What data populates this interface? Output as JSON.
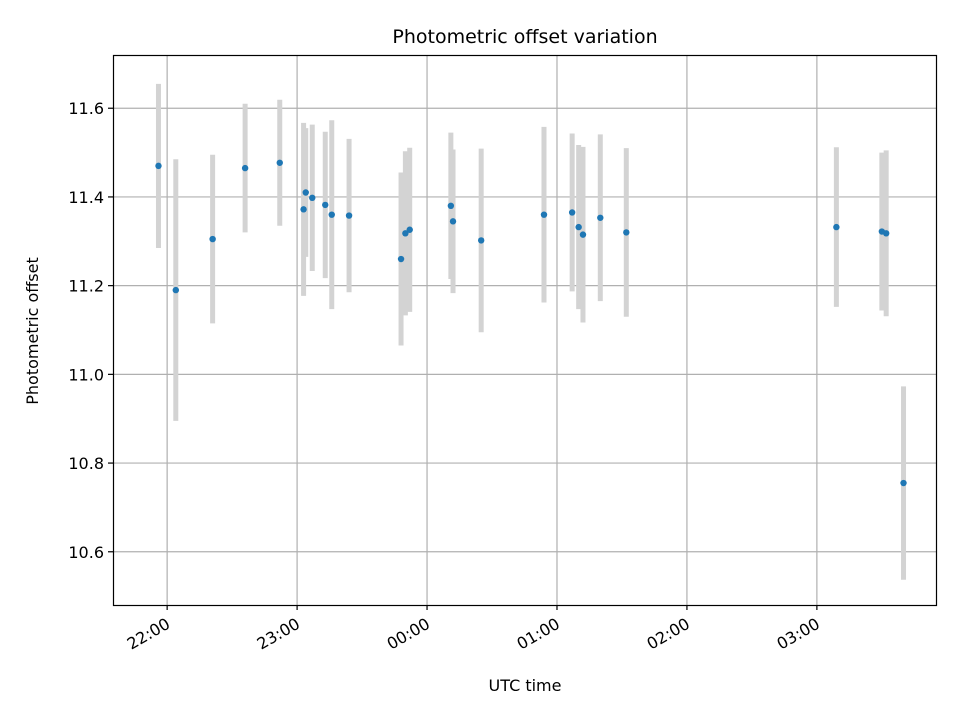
{
  "chart_data": {
    "type": "scatter",
    "title": "Photometric offset variation",
    "xlabel": "UTC time",
    "ylabel": "Photometric offset",
    "x_unit": "UTC",
    "x_start_day": "day 1",
    "xlim": [
      "21:35",
      "03:55"
    ],
    "ylim": [
      10.48,
      11.72
    ],
    "grid": true,
    "x_ticks": [
      "22:00",
      "23:00",
      "00:00",
      "01:00",
      "02:00",
      "03:00"
    ],
    "y_ticks": [
      "10.6",
      "10.8",
      "11.0",
      "11.2",
      "11.4",
      "11.6"
    ],
    "colors": {
      "point": "#1f77b4",
      "errorbar": "#d3d3d3",
      "grid": "#b0b0b0"
    },
    "series": [
      {
        "points": [
          {
            "x": "21:56",
            "y": 11.47,
            "err": 0.185
          },
          {
            "x": "22:04",
            "y": 11.19,
            "err": 0.295
          },
          {
            "x": "22:21",
            "y": 11.305,
            "err": 0.19
          },
          {
            "x": "22:36",
            "y": 11.465,
            "err": 0.145
          },
          {
            "x": "22:52",
            "y": 11.477,
            "err": 0.142
          },
          {
            "x": "23:03",
            "y": 11.372,
            "err": 0.195
          },
          {
            "x": "23:04",
            "y": 11.41,
            "err": 0.145
          },
          {
            "x": "23:07",
            "y": 11.398,
            "err": 0.165
          },
          {
            "x": "23:13",
            "y": 11.382,
            "err": 0.165
          },
          {
            "x": "23:16",
            "y": 11.36,
            "err": 0.213
          },
          {
            "x": "23:24",
            "y": 11.358,
            "err": 0.173
          },
          {
            "x": "23:48",
            "y": 11.26,
            "err": 0.195
          },
          {
            "x": "23:50",
            "y": 11.318,
            "err": 0.185
          },
          {
            "x": "23:52",
            "y": 11.326,
            "err": 0.185
          },
          {
            "x": "00:11",
            "y": 11.38,
            "err": 0.165
          },
          {
            "x": "00:12",
            "y": 11.345,
            "err": 0.162
          },
          {
            "x": "00:25",
            "y": 11.302,
            "err": 0.207
          },
          {
            "x": "00:54",
            "y": 11.36,
            "err": 0.198
          },
          {
            "x": "01:07",
            "y": 11.365,
            "err": 0.178
          },
          {
            "x": "01:10",
            "y": 11.332,
            "err": 0.185
          },
          {
            "x": "01:12",
            "y": 11.315,
            "err": 0.198
          },
          {
            "x": "01:20",
            "y": 11.353,
            "err": 0.188
          },
          {
            "x": "01:32",
            "y": 11.32,
            "err": 0.19
          },
          {
            "x": "03:09",
            "y": 11.332,
            "err": 0.18
          },
          {
            "x": "03:30",
            "y": 11.322,
            "err": 0.178
          },
          {
            "x": "03:32",
            "y": 11.318,
            "err": 0.187
          },
          {
            "x": "03:40",
            "y": 10.755,
            "err": 0.218
          }
        ]
      }
    ]
  }
}
